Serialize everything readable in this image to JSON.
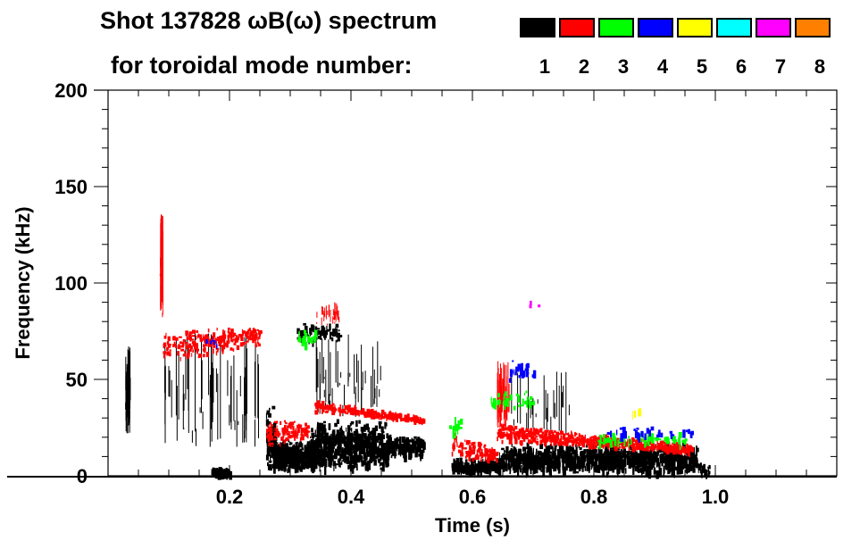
{
  "chart_data": {
    "type": "heatmap",
    "title_line1": "Shot 137828 ωB(ω) spectrum",
    "title_line2": "for toroidal mode number:",
    "xlabel": "Time (s)",
    "ylabel": "Frequency (kHz)",
    "xlim": [
      0,
      1.2
    ],
    "ylim": [
      0,
      200
    ],
    "xticks": [
      {
        "v": 0.2,
        "label": "0.2"
      },
      {
        "v": 0.4,
        "label": "0.4"
      },
      {
        "v": 0.6,
        "label": "0.6"
      },
      {
        "v": 0.8,
        "label": "0.8"
      },
      {
        "v": 1.0,
        "label": "1.0"
      }
    ],
    "yticks": [
      {
        "v": 0,
        "label": "0"
      },
      {
        "v": 50,
        "label": "50"
      },
      {
        "v": 100,
        "label": "100"
      },
      {
        "v": 150,
        "label": "150"
      },
      {
        "v": 200,
        "label": "200"
      }
    ],
    "x_minor_step": 0.05,
    "y_minor_step": 10,
    "legend": [
      {
        "mode": "1",
        "color": "#000000"
      },
      {
        "mode": "2",
        "color": "#ff0000"
      },
      {
        "mode": "3",
        "color": "#00ff00"
      },
      {
        "mode": "4",
        "color": "#0000ff"
      },
      {
        "mode": "5",
        "color": "#ffff00"
      },
      {
        "mode": "6",
        "color": "#00ffff"
      },
      {
        "mode": "7",
        "color": "#ff00ff"
      },
      {
        "mode": "8",
        "color": "#ff8000"
      }
    ],
    "regions": [
      {
        "mode": 1,
        "t": [
          0.028,
          0.036
        ],
        "f": [
          22,
          68
        ],
        "density": 40,
        "style": "vline"
      },
      {
        "mode": 1,
        "t": [
          0.09,
          0.25
        ],
        "f": [
          15,
          75
        ],
        "density": 60,
        "style": "vline"
      },
      {
        "mode": 1,
        "t": [
          0.17,
          0.2
        ],
        "f": [
          1,
          5
        ],
        "density": 60,
        "style": "blob"
      },
      {
        "mode": 1,
        "t": [
          0.26,
          0.275
        ],
        "f": [
          3,
          38
        ],
        "density": 80,
        "style": "blob"
      },
      {
        "mode": 1,
        "t": [
          0.27,
          0.34
        ],
        "f": [
          3,
          20
        ],
        "density": 450,
        "style": "blob"
      },
      {
        "mode": 1,
        "t": [
          0.33,
          0.46
        ],
        "f": [
          4,
          30
        ],
        "density": 650,
        "style": "blob"
      },
      {
        "mode": 1,
        "t": [
          0.46,
          0.52
        ],
        "f": [
          10,
          22
        ],
        "density": 140,
        "style": "blob"
      },
      {
        "mode": 1,
        "t": [
          0.31,
          0.38
        ],
        "f": [
          70,
          80
        ],
        "density": 60,
        "style": "blob"
      },
      {
        "mode": 1,
        "t": [
          0.34,
          0.45
        ],
        "f": [
          30,
          75
        ],
        "density": 45,
        "style": "vline"
      },
      {
        "mode": 1,
        "t": [
          0.565,
          0.64
        ],
        "f": [
          2,
          10
        ],
        "density": 150,
        "style": "blob"
      },
      {
        "mode": 1,
        "t": [
          0.64,
          0.97
        ],
        "f": [
          2,
          18
        ],
        "density": 1100,
        "style": "blob"
      },
      {
        "mode": 1,
        "t": [
          0.65,
          0.76
        ],
        "f": [
          20,
          55
        ],
        "density": 25,
        "style": "vline"
      },
      {
        "mode": 1,
        "t": [
          0.97,
          0.99
        ],
        "f": [
          1,
          8
        ],
        "density": 20,
        "style": "blob"
      },
      {
        "mode": 2,
        "t": [
          0.084,
          0.09
        ],
        "f": [
          80,
          137
        ],
        "density": 40,
        "style": "vline"
      },
      {
        "mode": 2,
        "t": [
          0.09,
          0.25
        ],
        "f": [
          58,
          78
        ],
        "density": 250,
        "style": "band",
        "f_end": [
          68,
          78
        ]
      },
      {
        "mode": 2,
        "t": [
          0.26,
          0.33
        ],
        "f": [
          14,
          30
        ],
        "density": 120,
        "style": "band",
        "f_end": [
          20,
          30
        ]
      },
      {
        "mode": 2,
        "t": [
          0.34,
          0.52
        ],
        "f": [
          34,
          40
        ],
        "density": 260,
        "style": "band",
        "f_end": [
          28,
          31
        ]
      },
      {
        "mode": 2,
        "t": [
          0.34,
          0.38
        ],
        "f": [
          78,
          90
        ],
        "density": 30,
        "style": "vline"
      },
      {
        "mode": 2,
        "t": [
          0.565,
          0.64
        ],
        "f": [
          10,
          24
        ],
        "density": 120,
        "style": "band",
        "f_end": [
          8,
          14
        ]
      },
      {
        "mode": 2,
        "t": [
          0.64,
          0.96
        ],
        "f": [
          18,
          28
        ],
        "density": 650,
        "style": "band",
        "f_end": [
          12,
          17
        ]
      },
      {
        "mode": 2,
        "t": [
          0.64,
          0.66
        ],
        "f": [
          25,
          60
        ],
        "density": 40,
        "style": "vline"
      },
      {
        "mode": 3,
        "t": [
          0.31,
          0.34
        ],
        "f": [
          68,
          76
        ],
        "density": 25,
        "style": "blob"
      },
      {
        "mode": 3,
        "t": [
          0.56,
          0.58
        ],
        "f": [
          22,
          32
        ],
        "density": 15,
        "style": "blob"
      },
      {
        "mode": 3,
        "t": [
          0.63,
          0.7
        ],
        "f": [
          35,
          45
        ],
        "density": 40,
        "style": "blob"
      },
      {
        "mode": 3,
        "t": [
          0.8,
          0.95
        ],
        "f": [
          17,
          23
        ],
        "density": 60,
        "style": "blob"
      },
      {
        "mode": 4,
        "t": [
          0.66,
          0.7
        ],
        "f": [
          50,
          60
        ],
        "density": 30,
        "style": "blob"
      },
      {
        "mode": 4,
        "t": [
          0.82,
          0.96
        ],
        "f": [
          20,
          26
        ],
        "density": 40,
        "style": "blob"
      },
      {
        "mode": 4,
        "t": [
          0.16,
          0.18
        ],
        "f": [
          68,
          72
        ],
        "density": 6,
        "style": "blob"
      },
      {
        "mode": 5,
        "t": [
          0.86,
          0.88
        ],
        "f": [
          33,
          36
        ],
        "density": 4,
        "style": "blob"
      },
      {
        "mode": 7,
        "t": [
          0.69,
          0.71
        ],
        "f": [
          88,
          92
        ],
        "density": 3,
        "style": "blob"
      }
    ]
  }
}
